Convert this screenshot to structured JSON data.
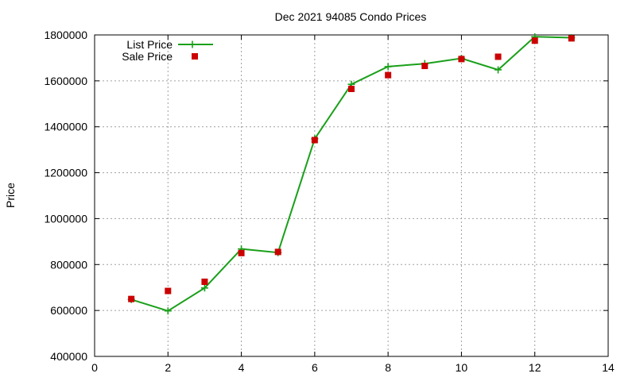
{
  "chart_data": {
    "type": "line",
    "title": "Dec 2021 94085 Condo Prices",
    "xlabel": "",
    "ylabel": "Price",
    "xlim": [
      0,
      14
    ],
    "ylim": [
      400000,
      1800000
    ],
    "xticks": [
      0,
      2,
      4,
      6,
      8,
      10,
      12,
      14
    ],
    "yticks": [
      400000,
      600000,
      800000,
      1000000,
      1200000,
      1400000,
      1600000,
      1800000
    ],
    "grid": true,
    "legend_position": "top-left",
    "series": [
      {
        "name": "List Price",
        "style": "line-plus",
        "color": "#1aa01a",
        "points": [
          {
            "x": 1,
            "y": 648000
          },
          {
            "x": 2,
            "y": 598000
          },
          {
            "x": 3,
            "y": 698000
          },
          {
            "x": 4,
            "y": 868000
          },
          {
            "x": 5,
            "y": 852000
          },
          {
            "x": 6,
            "y": 1348000
          },
          {
            "x": 7,
            "y": 1585000
          },
          {
            "x": 8,
            "y": 1662000
          },
          {
            "x": 9,
            "y": 1675000
          },
          {
            "x": 10,
            "y": 1698000
          },
          {
            "x": 11,
            "y": 1648000
          },
          {
            "x": 12,
            "y": 1792000
          },
          {
            "x": 13,
            "y": 1788000
          }
        ]
      },
      {
        "name": "Sale Price",
        "style": "square-marker",
        "color": "#cc0000",
        "points": [
          {
            "x": 1,
            "y": 650000
          },
          {
            "x": 2,
            "y": 685000
          },
          {
            "x": 3,
            "y": 725000
          },
          {
            "x": 4,
            "y": 850000
          },
          {
            "x": 5,
            "y": 855000
          },
          {
            "x": 6,
            "y": 1342000
          },
          {
            "x": 7,
            "y": 1565000
          },
          {
            "x": 8,
            "y": 1625000
          },
          {
            "x": 9,
            "y": 1665000
          },
          {
            "x": 10,
            "y": 1695000
          },
          {
            "x": 11,
            "y": 1705000
          },
          {
            "x": 12,
            "y": 1775000
          },
          {
            "x": 13,
            "y": 1785000
          }
        ]
      }
    ]
  }
}
